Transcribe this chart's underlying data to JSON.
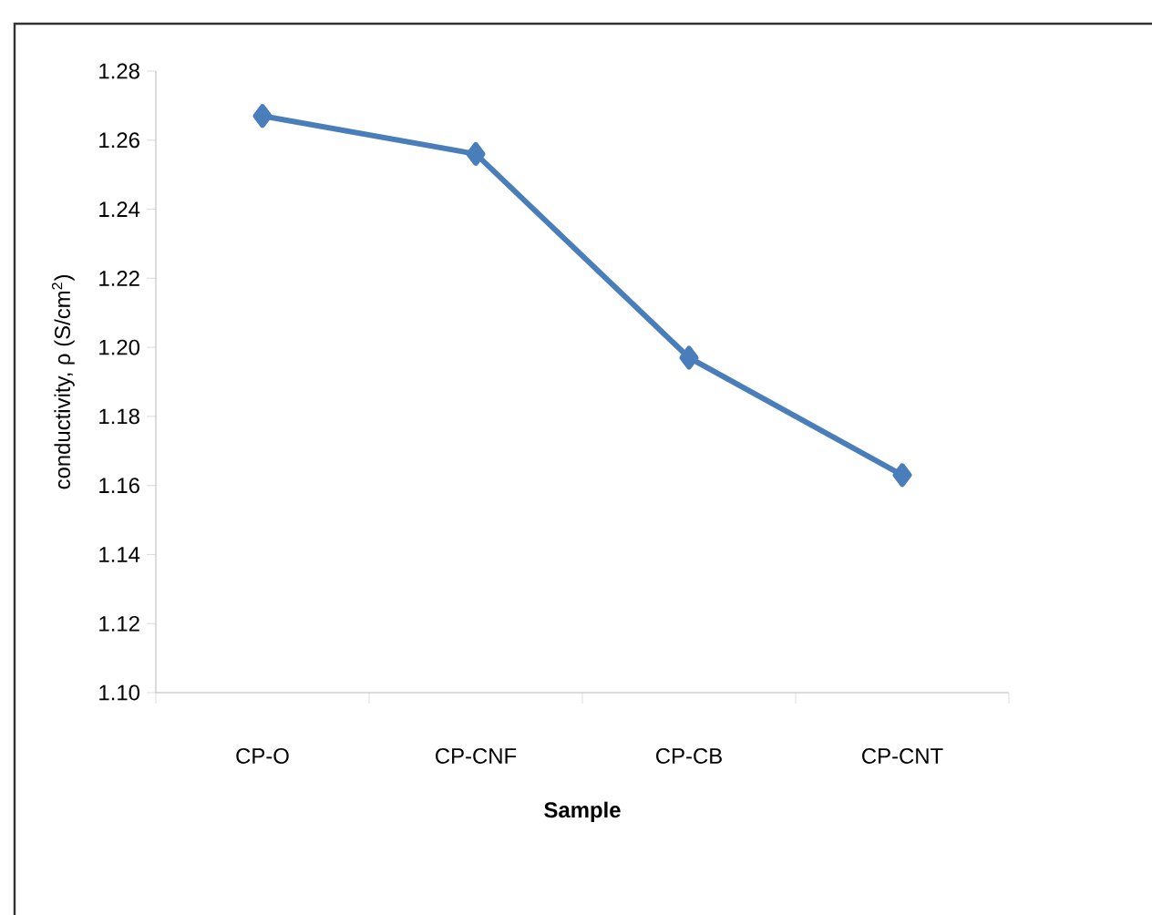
{
  "chart_data": {
    "type": "line",
    "xlabel": "Sample",
    "ylabel": "conductivity, ρ (S/cm$^{2}$)",
    "categories": [
      "CP-O",
      "CP-CNF",
      "CP-CB",
      "CP-CNT"
    ],
    "series": [
      {
        "color": "#4a7ebb",
        "values": [
          1.267,
          1.256,
          1.197,
          1.163
        ]
      }
    ],
    "ylim": [
      1.1,
      1.28
    ],
    "yticks": [
      {
        "value": 1.1,
        "label": "1.10"
      },
      {
        "value": 1.12,
        "label": "1.12"
      },
      {
        "value": 1.14,
        "label": "1.14"
      },
      {
        "value": 1.16,
        "label": "1.16"
      },
      {
        "value": 1.18,
        "label": "1.18"
      },
      {
        "value": 1.2,
        "label": "1.20"
      },
      {
        "value": 1.22,
        "label": "1.22"
      },
      {
        "value": 1.24,
        "label": "1.24"
      },
      {
        "value": 1.26,
        "label": "1.26"
      },
      {
        "value": 1.28,
        "label": "1.28"
      }
    ],
    "marker": "diamond",
    "line_style": "solid"
  }
}
